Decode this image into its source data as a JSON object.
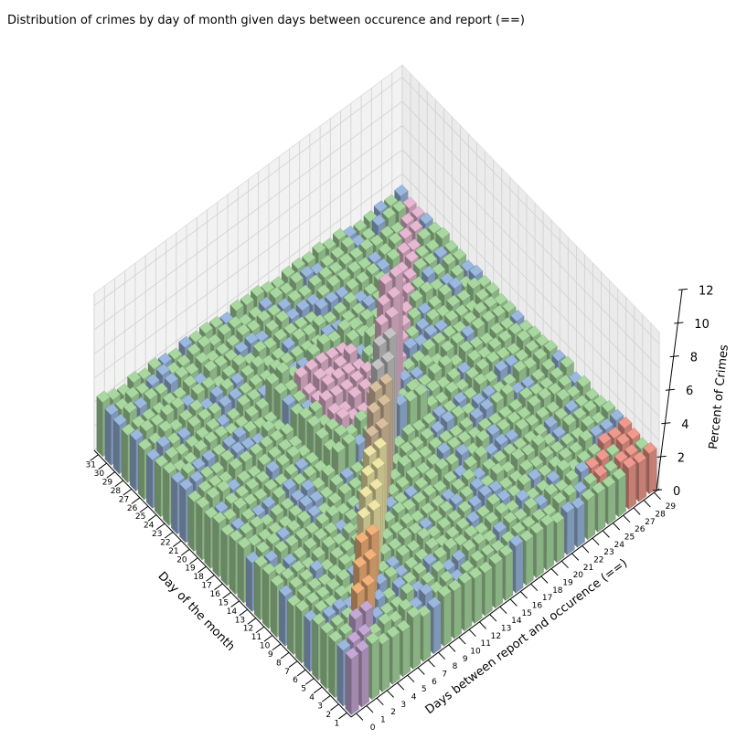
{
  "chart_data": {
    "type": "bar3d",
    "title": "Distribution of crimes by day of month given days between occurence and report (==)",
    "xlabel": "Day of the month",
    "ylabel": "Days between report and occurence (==)",
    "zlabel": "Percent of Crimes",
    "x_ticks": [
      "1",
      "2",
      "3",
      "4",
      "5",
      "6",
      "7",
      "8",
      "9",
      "10",
      "11",
      "12",
      "13",
      "14",
      "15",
      "16",
      "17",
      "18",
      "19",
      "20",
      "21",
      "22",
      "23",
      "24",
      "25",
      "26",
      "27",
      "28",
      "29",
      "30",
      "31"
    ],
    "y_ticks": [
      "0",
      "1",
      "2",
      "3",
      "4",
      "5",
      "6",
      "7",
      "8",
      "9",
      "10",
      "11",
      "12",
      "13",
      "14",
      "15",
      "16",
      "17",
      "18",
      "19",
      "20",
      "21",
      "22",
      "23",
      "24",
      "25",
      "26",
      "27",
      "28",
      "29"
    ],
    "z_ticks": [
      "0",
      "2",
      "4",
      "6",
      "8",
      "10",
      "12"
    ],
    "zlim": [
      0,
      13
    ],
    "grid": true,
    "colors": {
      "base": "#a8d8a0",
      "blue": "#9bb8de",
      "pink": "#e6b8d2",
      "orange": "#f2b27a",
      "yellow": "#eee7a8",
      "tan": "#d8bf9f",
      "gray": "#c4c4c4",
      "salmon": "#ef9a8c",
      "violet": "#c6a8d6"
    },
    "notes_visible": {
      "diagonal_peak_values_by_day_of_month": [
        {
          "day": 1,
          "value": 4.0
        },
        {
          "day": 2,
          "value": 4.5
        },
        {
          "day": 3,
          "value": 5.2
        },
        {
          "day": 4,
          "value": 6.0
        },
        {
          "day": 5,
          "value": 6.8
        },
        {
          "day": 6,
          "value": 7.5
        },
        {
          "day": 7,
          "value": 8.2
        },
        {
          "day": 8,
          "value": 8.6
        },
        {
          "day": 9,
          "value": 9.0
        },
        {
          "day": 10,
          "value": 9.3
        },
        {
          "day": 11,
          "value": 9.6
        },
        {
          "day": 12,
          "value": 10.2
        },
        {
          "day": 13,
          "value": 10.6
        },
        {
          "day": 14,
          "value": 11.1
        },
        {
          "day": 15,
          "value": 11.7
        },
        {
          "day": 16,
          "value": 12.1
        },
        {
          "day": 17,
          "value": 12.4
        },
        {
          "day": 18,
          "value": 12.8
        }
      ]
    }
  }
}
